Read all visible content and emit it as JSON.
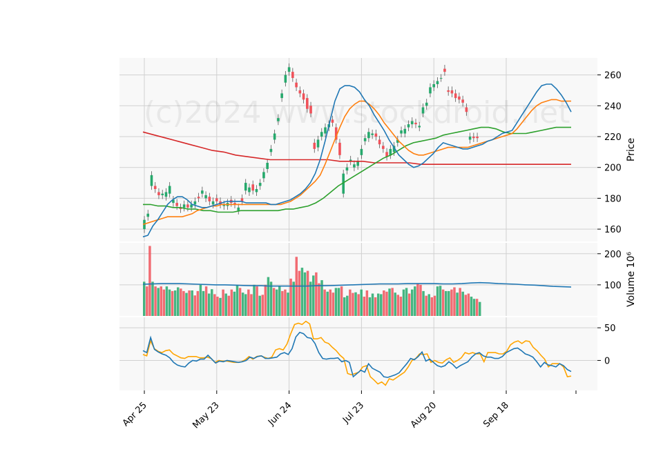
{
  "watermark": "(c)2024 www.stockdroid.net",
  "colors": {
    "up": "#26a96c",
    "down": "#f0525a",
    "ma_fast": "#1f77b4",
    "ma_mid": "#ff7f0e",
    "ma_slow": "#2ca02c",
    "ma_long": "#d62728",
    "vol_ma": "#1f77b4",
    "osc_a": "#1f77b4",
    "osc_b": "#ffa500",
    "panel_bg": "#f8f8f8",
    "grid": "#d0d0d0"
  },
  "chart_data": [
    {
      "type": "candlestick",
      "panel": "price",
      "ylabel": "Price",
      "yticks": [
        160,
        180,
        200,
        220,
        240,
        260
      ],
      "ylim": [
        152,
        271
      ],
      "x_ticks": [
        "Apr 25",
        "May 23",
        "Jun 24",
        "Jul 23",
        "Aug 20",
        "Sep 18"
      ],
      "x_tick_index": [
        0,
        20,
        40,
        60,
        80,
        100
      ],
      "close": [
        166,
        170,
        195,
        186,
        182,
        183,
        184,
        188,
        179,
        175,
        173,
        176,
        174,
        176,
        178,
        180,
        185,
        182,
        178,
        178,
        178,
        176,
        176,
        177,
        177,
        176,
        174,
        178,
        190,
        187,
        185,
        186,
        190,
        197,
        203,
        212,
        222,
        232,
        248,
        260,
        265,
        258,
        252,
        248,
        244,
        238,
        235,
        212,
        218,
        223,
        226,
        228,
        229,
        218,
        208,
        196,
        200,
        205,
        202,
        204,
        212,
        219,
        223,
        222,
        220,
        215,
        212,
        207,
        212,
        214,
        218,
        224,
        225,
        228,
        230,
        228,
        227,
        239,
        242,
        252,
        254,
        256,
        258,
        262,
        249,
        248,
        245,
        244,
        242,
        236,
        220,
        219,
        219
      ],
      "open": [
        160,
        168,
        188,
        188,
        184,
        182,
        181,
        183,
        177,
        177,
        174,
        174,
        176,
        174,
        176,
        181,
        183,
        180,
        181,
        176,
        180,
        178,
        175,
        175,
        179,
        177,
        172,
        180,
        185,
        184,
        189,
        184,
        188,
        193,
        199,
        210,
        218,
        230,
        245,
        255,
        262,
        262,
        255,
        250,
        248,
        245,
        240,
        216,
        213,
        220,
        222,
        226,
        231,
        226,
        216,
        183,
        198,
        204,
        200,
        201,
        208,
        217,
        219,
        221,
        222,
        218,
        214,
        210,
        208,
        210,
        216,
        222,
        222,
        226,
        228,
        229,
        226,
        235,
        240,
        248,
        252,
        254,
        258,
        264,
        250,
        250,
        248,
        246,
        244,
        239,
        218,
        220,
        220
      ],
      "ma_fast": [
        155,
        156,
        162,
        166,
        171,
        176,
        179,
        181,
        181,
        179,
        176,
        175,
        174,
        174,
        175,
        176,
        177,
        178,
        178,
        178,
        178,
        177,
        177,
        177,
        177,
        177,
        176,
        176,
        177,
        178,
        179,
        181,
        183,
        186,
        190,
        196,
        205,
        217,
        230,
        243,
        251,
        253,
        253,
        252,
        249,
        244,
        240,
        234,
        229,
        224,
        218,
        213,
        208,
        205,
        202,
        200,
        201,
        203,
        206,
        209,
        213,
        216,
        215,
        214,
        213,
        212,
        212,
        213,
        214,
        215,
        217,
        218,
        220,
        222,
        223,
        224,
        229,
        234,
        239,
        244,
        249,
        253,
        254,
        254,
        251,
        247,
        242,
        236
      ],
      "ma_mid": [
        163,
        164,
        165,
        166,
        167,
        168,
        168,
        168,
        168,
        169,
        170,
        172,
        173,
        174,
        175,
        175,
        176,
        176,
        176,
        176,
        176,
        176,
        176,
        176,
        176,
        176,
        176,
        176,
        176,
        177,
        178,
        180,
        182,
        185,
        188,
        191,
        195,
        202,
        210,
        218,
        226,
        233,
        238,
        241,
        243,
        243,
        241,
        238,
        234,
        229,
        225,
        221,
        217,
        214,
        211,
        209,
        208,
        208,
        209,
        210,
        211,
        212,
        213,
        213,
        213,
        213,
        213,
        214,
        215,
        216,
        217,
        218,
        219,
        220,
        221,
        222,
        225,
        229,
        233,
        237,
        240,
        242,
        243,
        244,
        244,
        243,
        243,
        243
      ],
      "ma_slow": [
        176,
        176,
        175,
        175,
        174,
        174,
        173,
        173,
        172,
        172,
        171,
        171,
        171,
        172,
        172,
        172,
        172,
        172,
        172,
        173,
        173,
        174,
        175,
        177,
        180,
        184,
        188,
        191,
        194,
        197,
        200,
        203,
        206,
        208,
        211,
        214,
        216,
        217,
        218,
        219,
        221,
        222,
        223,
        224,
        225,
        226,
        226,
        225,
        223,
        222,
        222,
        222,
        223,
        224,
        225,
        226,
        226,
        226
      ],
      "ma_long": [
        223,
        221,
        219,
        217,
        215,
        213,
        211,
        210,
        208,
        207,
        206,
        205,
        205,
        205,
        205,
        205,
        205,
        204,
        204,
        204,
        203,
        203,
        203,
        203,
        202,
        202,
        202,
        202,
        202,
        202,
        202,
        202,
        202,
        202,
        202,
        202,
        202,
        202
      ],
      "ma_fast_start": 0,
      "ma_mid_start": 0,
      "ma_slow_start": 0,
      "ma_long_start": 0
    },
    {
      "type": "bar",
      "panel": "volume",
      "ylabel": "Volume  10⁶",
      "yticks": [
        100,
        200
      ],
      "ylim": [
        0,
        235
      ],
      "values": [
        110,
        95,
        225,
        110,
        95,
        90,
        95,
        85,
        95,
        85,
        80,
        82,
        92,
        88,
        80,
        74,
        82,
        82,
        66,
        80,
        100,
        80,
        95,
        72,
        86,
        70,
        62,
        58,
        85,
        72,
        65,
        85,
        78,
        100,
        90,
        75,
        70,
        85,
        70,
        100,
        95,
        65,
        68,
        100,
        125,
        110,
        90,
        85,
        95,
        80,
        85,
        75,
        120,
        110,
        190,
        145,
        155,
        140,
        145,
        110,
        130,
        140,
        105,
        115,
        85,
        78,
        85,
        75,
        90,
        90,
        95,
        60,
        65,
        85,
        74,
        76,
        70,
        85,
        62,
        82,
        60,
        72,
        60,
        72,
        70,
        82,
        78,
        88,
        90,
        75,
        68,
        62,
        85,
        90,
        72,
        85,
        95,
        105,
        100,
        80,
        65,
        70,
        60,
        65,
        95,
        97,
        85,
        80,
        80,
        85,
        92,
        75,
        90,
        78,
        68,
        72,
        62,
        55,
        55,
        45
      ],
      "vol_ma": [
        102,
        103,
        104,
        104,
        104,
        103,
        102,
        101,
        100,
        100,
        99,
        98,
        97,
        97,
        96,
        96,
        96,
        96,
        96,
        97,
        97,
        98,
        99,
        100,
        101,
        102,
        103,
        103,
        103,
        104,
        104,
        104,
        104,
        103,
        103,
        104,
        106,
        107,
        106,
        104,
        103,
        102,
        100,
        99,
        97,
        95,
        94,
        93
      ]
    },
    {
      "type": "line",
      "panel": "oscillator",
      "yticks": [
        0,
        50
      ],
      "ylim": [
        -46,
        66
      ],
      "series": [
        {
          "key": "osc_a",
          "values": [
            15,
            12,
            35,
            17,
            13,
            10,
            8,
            4,
            -3,
            -7,
            -9,
            -10,
            -4,
            0,
            -1,
            2,
            2,
            8,
            2,
            -4,
            -1,
            -2,
            0,
            -1,
            -2,
            -3,
            -2,
            0,
            5,
            3,
            6,
            7,
            3,
            3,
            4,
            5,
            10,
            12,
            9,
            18,
            36,
            43,
            41,
            35,
            34,
            26,
            12,
            3,
            2,
            3,
            3,
            4,
            -2,
            0,
            -3,
            -25,
            -20,
            -15,
            -18,
            -5,
            -12,
            -15,
            -18,
            -25,
            -26,
            -24,
            -22,
            -19,
            -12,
            -5,
            3,
            1,
            6,
            13,
            -1,
            2,
            -3,
            -8,
            -10,
            -8,
            -2,
            -6,
            -12,
            -8,
            -5,
            -2,
            5,
            10,
            12,
            7,
            5,
            5,
            3,
            3,
            6,
            12,
            15,
            18,
            19,
            15,
            10,
            8,
            5,
            -2,
            -10,
            -3,
            -7,
            -8,
            -10,
            -5,
            -8,
            -14,
            -17
          ]
        },
        {
          "key": "osc_b",
          "values": [
            9,
            7,
            30,
            18,
            14,
            12,
            15,
            16,
            10,
            7,
            4,
            3,
            6,
            6,
            6,
            4,
            4,
            5,
            3,
            -3,
            0,
            -1,
            -1,
            -2,
            -3,
            -3,
            -2,
            1,
            6,
            2,
            6,
            7,
            5,
            3,
            5,
            16,
            18,
            16,
            25,
            41,
            55,
            57,
            55,
            60,
            56,
            33,
            33,
            35,
            28,
            26,
            20,
            15,
            8,
            3,
            -20,
            -22,
            -20,
            -18,
            -10,
            -8,
            -25,
            -30,
            -36,
            -33,
            -38,
            -28,
            -30,
            -26,
            -22,
            -18,
            -10,
            0,
            3,
            10,
            9,
            10,
            -3,
            0,
            -3,
            -4,
            1,
            4,
            -3,
            0,
            4,
            12,
            10,
            12,
            10,
            10,
            -2,
            12,
            12,
            12,
            10,
            10,
            14,
            24,
            28,
            30,
            26,
            30,
            29,
            20,
            15,
            8,
            2,
            -10,
            -5,
            -5,
            -5,
            -10,
            -25,
            -24
          ]
        }
      ]
    }
  ]
}
